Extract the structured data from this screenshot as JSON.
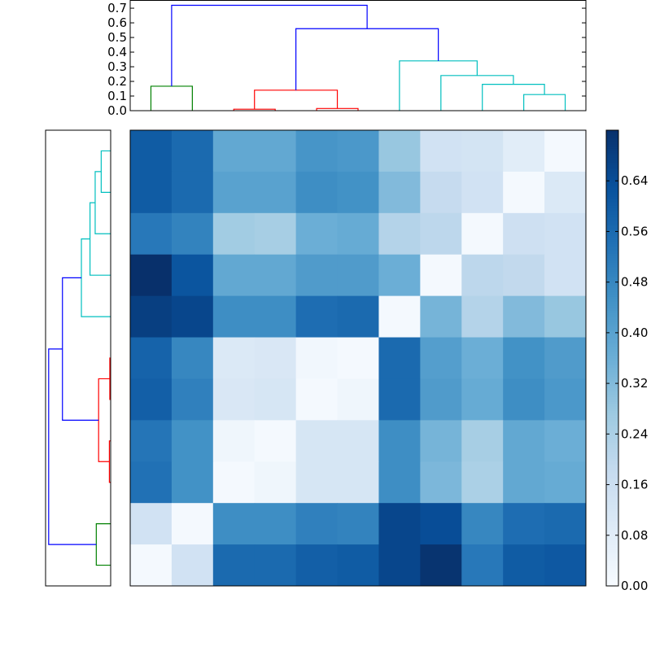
{
  "chart_data": {
    "type": "heatmap",
    "colormap": "Blues",
    "vmin": 0.0,
    "vmax": 0.72,
    "colorbar_ticks": [
      "0.00",
      "0.08",
      "0.16",
      "0.24",
      "0.32",
      "0.40",
      "0.48",
      "0.56",
      "0.64"
    ],
    "colorbar_tick_values": [
      0,
      0.08,
      0.16,
      0.24,
      0.32,
      0.4,
      0.48,
      0.56,
      0.64
    ],
    "matrix": [
      [
        0.6,
        0.56,
        0.38,
        0.38,
        0.44,
        0.43,
        0.28,
        0.14,
        0.13,
        0.08,
        0.01
      ],
      [
        0.6,
        0.56,
        0.4,
        0.4,
        0.46,
        0.45,
        0.32,
        0.18,
        0.14,
        0.01,
        0.1
      ],
      [
        0.52,
        0.49,
        0.26,
        0.25,
        0.36,
        0.37,
        0.22,
        0.2,
        0.01,
        0.15,
        0.14
      ],
      [
        0.72,
        0.62,
        0.38,
        0.38,
        0.42,
        0.42,
        0.36,
        0.01,
        0.2,
        0.19,
        0.14
      ],
      [
        0.68,
        0.66,
        0.46,
        0.46,
        0.55,
        0.56,
        0.01,
        0.34,
        0.22,
        0.32,
        0.28
      ],
      [
        0.58,
        0.48,
        0.1,
        0.11,
        0.02,
        0.01,
        0.56,
        0.41,
        0.36,
        0.45,
        0.42
      ],
      [
        0.59,
        0.5,
        0.11,
        0.12,
        0.01,
        0.03,
        0.56,
        0.42,
        0.37,
        0.46,
        0.43
      ],
      [
        0.53,
        0.45,
        0.03,
        0.01,
        0.12,
        0.12,
        0.46,
        0.34,
        0.25,
        0.38,
        0.36
      ],
      [
        0.54,
        0.45,
        0.01,
        0.03,
        0.12,
        0.12,
        0.46,
        0.33,
        0.24,
        0.38,
        0.37
      ],
      [
        0.14,
        0.01,
        0.46,
        0.46,
        0.5,
        0.49,
        0.66,
        0.64,
        0.48,
        0.55,
        0.56
      ],
      [
        0.01,
        0.14,
        0.56,
        0.56,
        0.59,
        0.6,
        0.66,
        0.71,
        0.52,
        0.6,
        0.61
      ]
    ],
    "top_dendrogram": {
      "ylim": [
        0,
        0.756
      ],
      "yticks": [
        "0.0",
        "0.1",
        "0.2",
        "0.3",
        "0.4",
        "0.5",
        "0.6",
        "0.7"
      ],
      "ytick_values": [
        0,
        0.1,
        0.2,
        0.3,
        0.4,
        0.5,
        0.6,
        0.7
      ],
      "links": [
        {
          "leaves": [
            0,
            1
          ],
          "heights": [
            0,
            0
          ],
          "merge": 0.167,
          "color": "#008000"
        },
        {
          "leaves": [
            2,
            3
          ],
          "heights": [
            0,
            0
          ],
          "merge": 0.01,
          "color": "#ff0000"
        },
        {
          "leaves": [
            4,
            5
          ],
          "heights": [
            0,
            0
          ],
          "merge": 0.015,
          "color": "#ff0000"
        },
        {
          "leaves": [
            2.5,
            4.5
          ],
          "heights": [
            0.01,
            0.015
          ],
          "merge": 0.14,
          "color": "#ff0000"
        },
        {
          "leaves": [
            9,
            10
          ],
          "heights": [
            0,
            0
          ],
          "merge": 0.11,
          "color": "#00bfbf"
        },
        {
          "leaves": [
            8,
            9.5
          ],
          "heights": [
            0,
            0.11
          ],
          "merge": 0.18,
          "color": "#00bfbf"
        },
        {
          "leaves": [
            7,
            8.75
          ],
          "heights": [
            0,
            0.18
          ],
          "merge": 0.24,
          "color": "#00bfbf"
        },
        {
          "leaves": [
            6,
            7.875
          ],
          "heights": [
            0,
            0.24
          ],
          "merge": 0.34,
          "color": "#00bfbf"
        },
        {
          "leaves": [
            3.5,
            6.9375
          ],
          "heights": [
            0.14,
            0.34
          ],
          "merge": 0.56,
          "color": "#0000ff"
        },
        {
          "leaves": [
            0.5,
            5.21875
          ],
          "heights": [
            0.167,
            0.56
          ],
          "merge": 0.72,
          "color": "#0000ff"
        }
      ]
    },
    "left_dendrogram": {
      "xlim": [
        0.756,
        0
      ],
      "links": [
        {
          "leaves": [
            0,
            1
          ],
          "heights": [
            0,
            0
          ],
          "merge": 0.11,
          "color": "#00bfbf"
        },
        {
          "leaves": [
            0.5,
            2
          ],
          "heights": [
            0.11,
            0
          ],
          "merge": 0.18,
          "color": "#00bfbf"
        },
        {
          "leaves": [
            1.25,
            3
          ],
          "heights": [
            0.18,
            0
          ],
          "merge": 0.24,
          "color": "#00bfbf"
        },
        {
          "leaves": [
            2.125,
            4
          ],
          "heights": [
            0.24,
            0
          ],
          "merge": 0.34,
          "color": "#00bfbf"
        },
        {
          "leaves": [
            5,
            6
          ],
          "heights": [
            0,
            0
          ],
          "merge": 0.01,
          "color": "#ff0000"
        },
        {
          "leaves": [
            7,
            8
          ],
          "heights": [
            0,
            0
          ],
          "merge": 0.015,
          "color": "#ff0000"
        },
        {
          "leaves": [
            5.5,
            7.5
          ],
          "heights": [
            0.01,
            0.015
          ],
          "merge": 0.14,
          "color": "#ff0000"
        },
        {
          "leaves": [
            9,
            10
          ],
          "heights": [
            0,
            0
          ],
          "merge": 0.167,
          "color": "#008000"
        },
        {
          "leaves": [
            3.0625,
            6.5
          ],
          "heights": [
            0.34,
            0.14
          ],
          "merge": 0.56,
          "color": "#0000ff"
        },
        {
          "leaves": [
            4.78125,
            9.5
          ],
          "heights": [
            0.56,
            0.167
          ],
          "merge": 0.72,
          "color": "#0000ff"
        }
      ]
    }
  }
}
